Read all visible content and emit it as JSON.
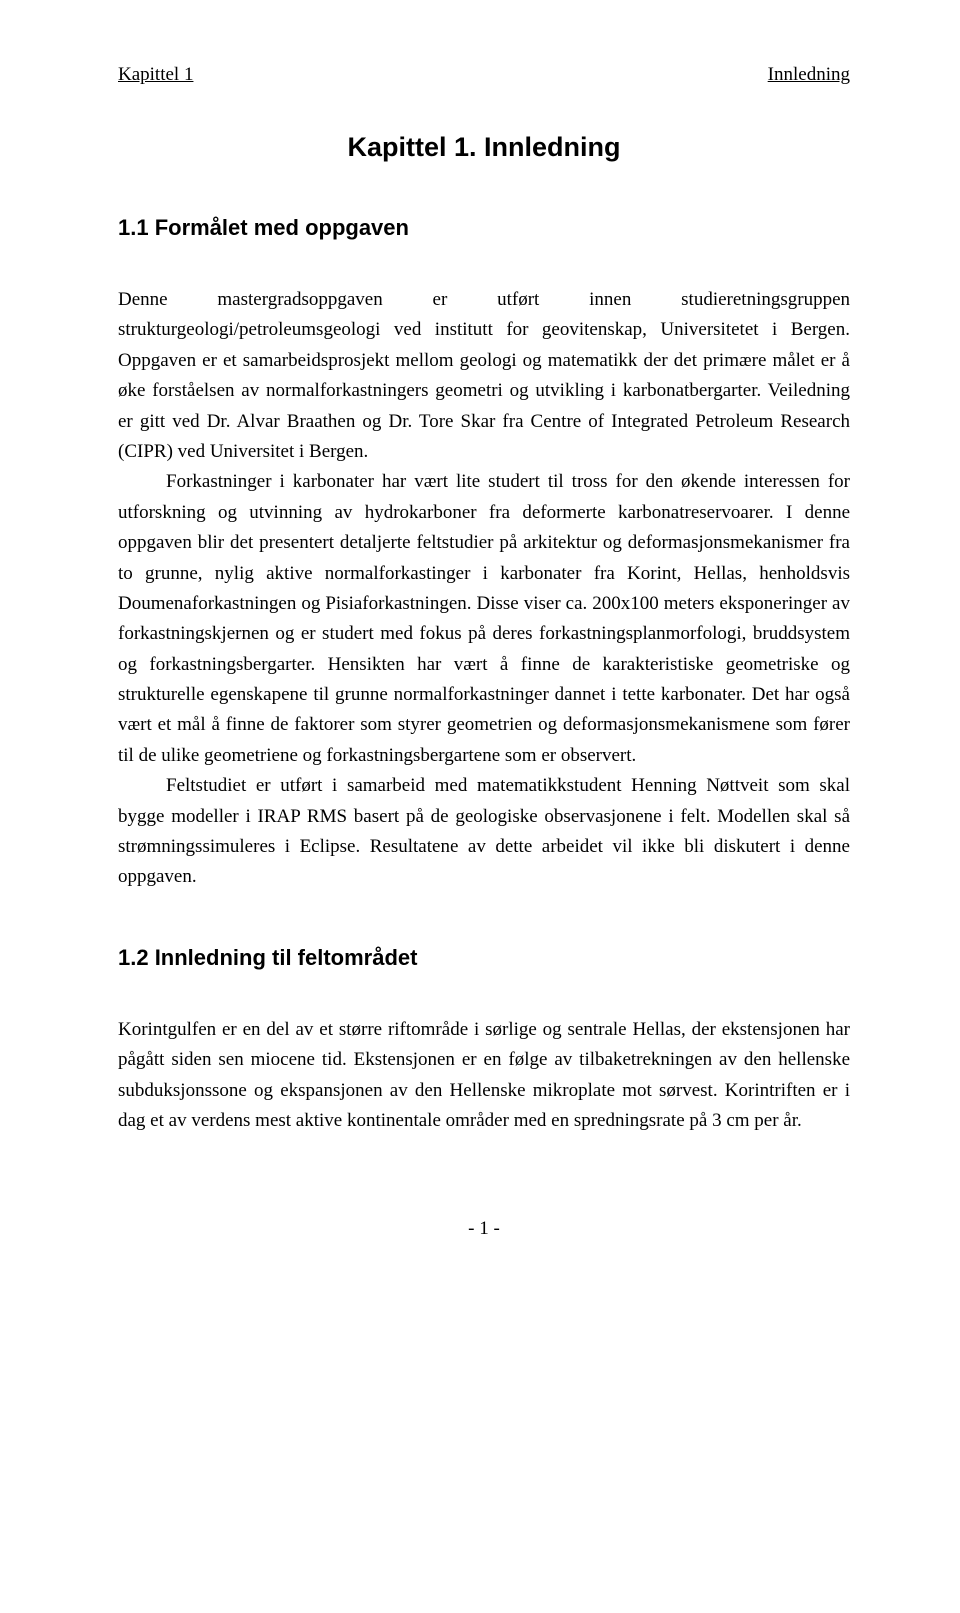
{
  "running_head": {
    "left": "Kapittel 1",
    "right": "Innledning"
  },
  "title": "Kapittel 1. Innledning",
  "section1_heading": "1.1 Formålet med oppgaven",
  "para1": "Denne mastergradsoppgaven er utført innen studieretningsgruppen strukturgeologi/petroleumsgeologi ved institutt for geovitenskap, Universitetet i Bergen. Oppgaven er et samarbeidsprosjekt mellom geologi og matematikk der det primære målet er å øke forståelsen av normalforkastningers geometri og utvikling i karbonatbergarter. Veiledning er gitt ved Dr. Alvar Braathen og Dr. Tore Skar fra Centre of Integrated Petroleum Research (CIPR) ved Universitet i Bergen.",
  "para2": "Forkastninger i karbonater har vært lite studert til tross for den økende interessen for utforskning og utvinning av hydrokarboner fra deformerte karbonatreservoarer. I denne oppgaven blir det presentert detaljerte feltstudier på arkitektur og deformasjonsmekanismer fra to grunne, nylig aktive normalforkastinger i karbonater fra Korint, Hellas, henholdsvis Doumenaforkastningen og Pisiaforkastningen. Disse viser ca. 200x100 meters eksponeringer av forkastningskjernen og er studert med fokus på deres forkastningsplanmorfologi, bruddsystem og forkastningsbergarter. Hensikten har vært å finne de karakteristiske geometriske og strukturelle egenskapene til grunne normalforkastninger dannet i tette karbonater. Det har også vært et mål å finne de faktorer som styrer geometrien og deformasjonsmekanismene som fører til de ulike geometriene og forkastningsbergartene som er observert.",
  "para3": "Feltstudiet er utført i samarbeid med matematikkstudent Henning Nøttveit som skal bygge modeller i IRAP RMS basert på de geologiske observasjonene i felt. Modellen skal så strømningssimuleres i Eclipse. Resultatene av dette arbeidet vil ikke bli diskutert i denne oppgaven.",
  "section2_heading": "1.2 Innledning til feltområdet",
  "para4": "Korintgulfen er en del av et større riftområde i sørlige og sentrale Hellas, der ekstensjonen har pågått siden sen miocene tid. Ekstensjonen er en følge av tilbaketrekningen av den hellenske subduksjonssone og ekspansjonen av den Hellenske mikroplate mot sørvest. Korintriften er i dag et av verdens mest aktive kontinentale områder med en spredningsrate på 3 cm per år.",
  "page_number": "- 1 -"
}
